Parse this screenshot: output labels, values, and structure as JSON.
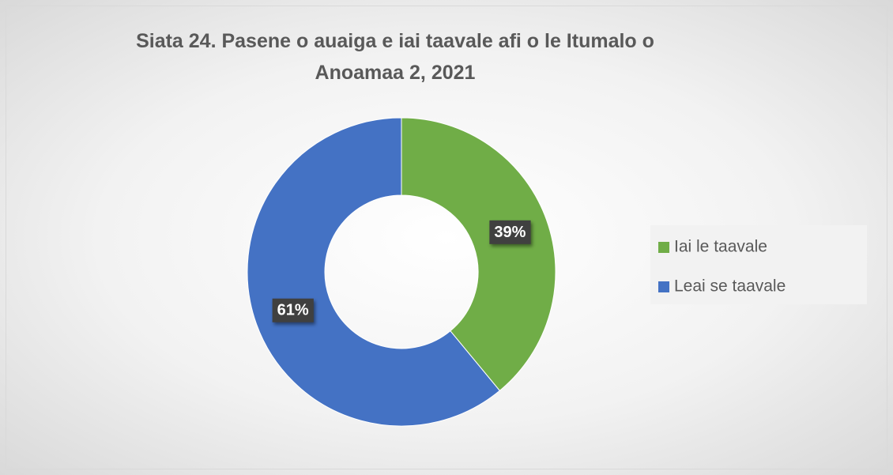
{
  "chart_data": {
    "type": "donut",
    "title": "Siata 24. Pasene o auaiga e iai taavale afi o le Itumalo o Anoamaa 2, 2021",
    "categories": [
      "Iai le taavale",
      "Leai se taavale"
    ],
    "values": [
      39,
      61
    ],
    "value_labels": [
      "39%",
      "61%"
    ],
    "colors": [
      "#70ad47",
      "#4472c4"
    ],
    "legend": "right"
  }
}
